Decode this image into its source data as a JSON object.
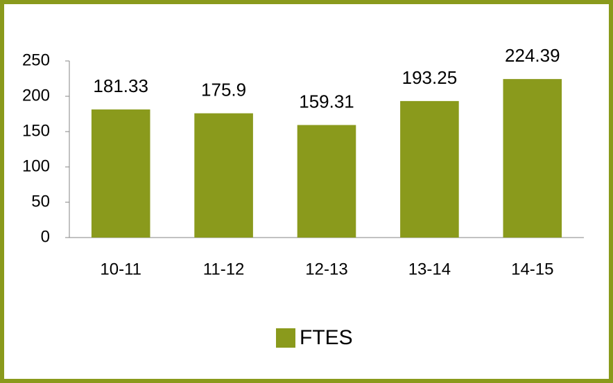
{
  "chart_data": {
    "type": "bar",
    "categories": [
      "10-11",
      "11-12",
      "12-13",
      "13-14",
      "14-15"
    ],
    "series": [
      {
        "name": "FTES",
        "color": "#8a9a1c",
        "values": [
          181.33,
          175.9,
          159.31,
          193.25,
          224.39
        ]
      }
    ],
    "ylim": [
      0,
      250
    ],
    "yticks": [
      0,
      50,
      100,
      150,
      200,
      250
    ],
    "grid": false,
    "legend": "bottom"
  }
}
